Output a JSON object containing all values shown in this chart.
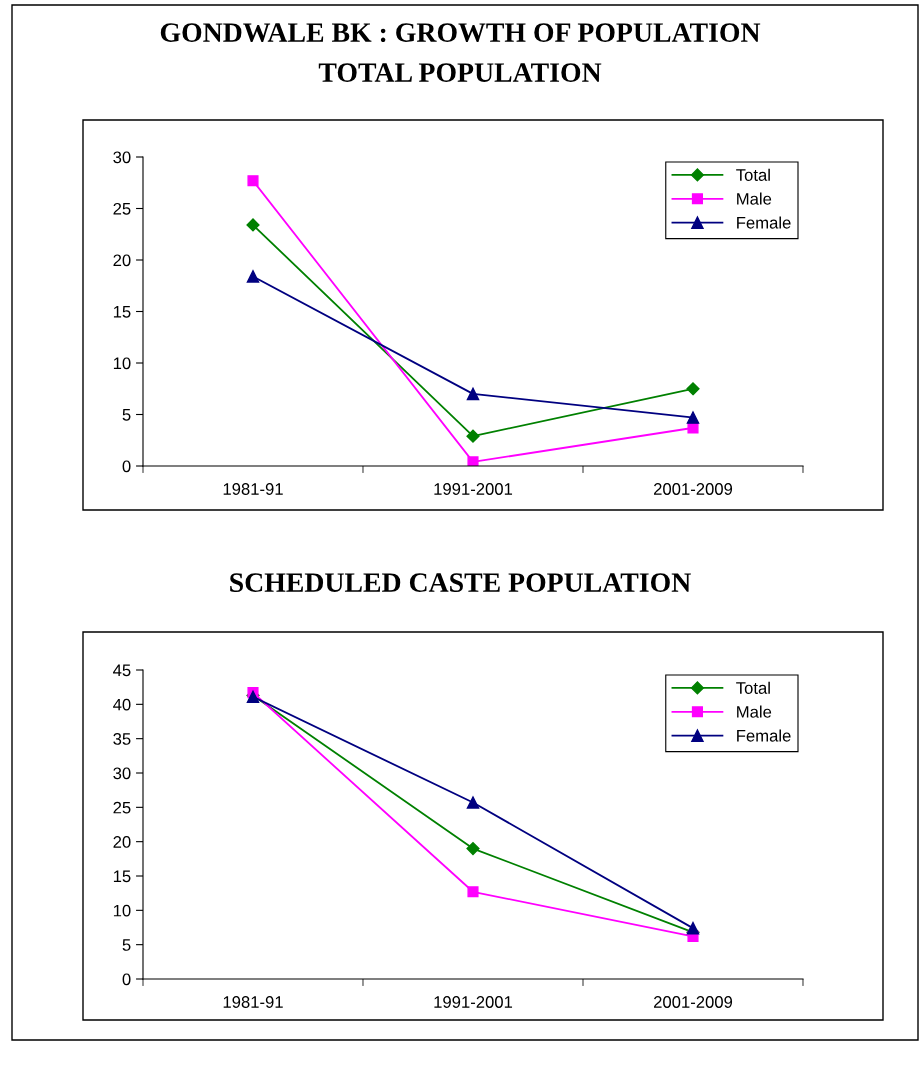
{
  "chart_data": [
    {
      "type": "line",
      "title": "GONDWALE BK : GROWTH OF POPULATION",
      "subtitle": "TOTAL POPULATION",
      "categories": [
        "1981-91",
        "1991-2001",
        "2001-2009"
      ],
      "series": [
        {
          "name": "Total",
          "color": "#008000",
          "marker": "diamond",
          "values": [
            23.4,
            2.9,
            7.5
          ]
        },
        {
          "name": "Male",
          "color": "#ff00ff",
          "marker": "square",
          "values": [
            27.7,
            0.4,
            3.7
          ]
        },
        {
          "name": "Female",
          "color": "#000080",
          "marker": "triangle",
          "values": [
            18.4,
            7.0,
            4.7
          ]
        }
      ],
      "ylim": [
        0,
        30
      ],
      "yticks": [
        0,
        5,
        10,
        15,
        20,
        25,
        30
      ],
      "grid": false,
      "legend": "top right"
    },
    {
      "type": "line",
      "title": "SCHEDULED CASTE POPULATION",
      "categories": [
        "1981-91",
        "1991-2001",
        "2001-2009"
      ],
      "series": [
        {
          "name": "Total",
          "color": "#008000",
          "marker": "diamond",
          "values": [
            41.3,
            19.0,
            6.8
          ]
        },
        {
          "name": "Male",
          "color": "#ff00ff",
          "marker": "square",
          "values": [
            41.7,
            12.7,
            6.2
          ]
        },
        {
          "name": "Female",
          "color": "#000080",
          "marker": "triangle",
          "values": [
            41.1,
            25.7,
            7.4
          ]
        }
      ],
      "ylim": [
        0,
        45
      ],
      "yticks": [
        0,
        5,
        10,
        15,
        20,
        25,
        30,
        35,
        40,
        45
      ],
      "grid": false,
      "legend": "top right"
    }
  ]
}
